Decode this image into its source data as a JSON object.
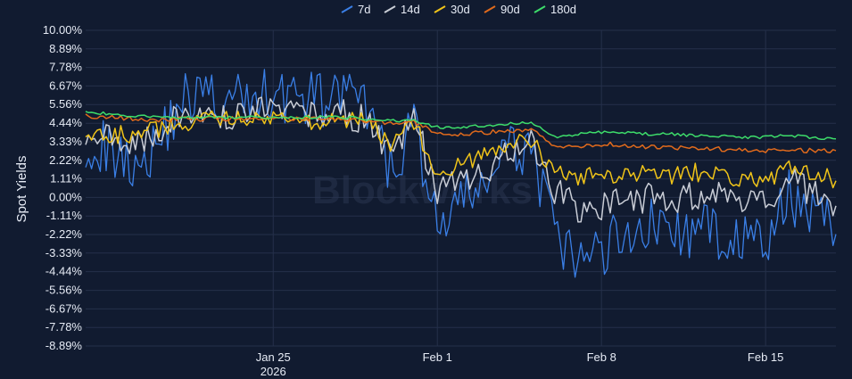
{
  "chart_data": {
    "type": "line",
    "ylabel": "Spot Yields",
    "watermark": "Blockworks",
    "legend_position": "top-center",
    "grid": true,
    "x_range": [
      "2026-01-17",
      "2026-02-18"
    ],
    "ylim": [
      -8.89,
      10.0
    ],
    "y_ticks": [
      "10.00%",
      "8.89%",
      "7.78%",
      "6.67%",
      "5.56%",
      "4.44%",
      "3.33%",
      "2.22%",
      "1.11%",
      "0.00%",
      "-1.11%",
      "-2.22%",
      "-3.33%",
      "-4.44%",
      "-5.56%",
      "-6.67%",
      "-7.78%",
      "-8.89%"
    ],
    "x_ticks": [
      {
        "date": "2026-01-25",
        "label": "Jan 25",
        "sublabel": "2026"
      },
      {
        "date": "2026-02-01",
        "label": "Feb 1",
        "sublabel": ""
      },
      {
        "date": "2026-02-08",
        "label": "Feb 8",
        "sublabel": ""
      },
      {
        "date": "2026-02-15",
        "label": "Feb 15",
        "sublabel": ""
      }
    ],
    "x": [
      "2026-01-17",
      "2026-01-18",
      "2026-01-19",
      "2026-01-20",
      "2026-01-21",
      "2026-01-22",
      "2026-01-23",
      "2026-01-24",
      "2026-01-25",
      "2026-01-26",
      "2026-01-27",
      "2026-01-28",
      "2026-01-29",
      "2026-01-30",
      "2026-01-31",
      "2026-02-01",
      "2026-02-02",
      "2026-02-03",
      "2026-02-04",
      "2026-02-05",
      "2026-02-06",
      "2026-02-07",
      "2026-02-08",
      "2026-02-09",
      "2026-02-10",
      "2026-02-11",
      "2026-02-12",
      "2026-02-13",
      "2026-02-14",
      "2026-02-15",
      "2026-02-16",
      "2026-02-17",
      "2026-02-18"
    ],
    "series": [
      {
        "name": "7d",
        "color": "#3a7fe6",
        "values": [
          3.5,
          2.8,
          2.2,
          3.0,
          5.8,
          6.2,
          5.5,
          6.0,
          6.3,
          6.0,
          5.8,
          6.2,
          5.2,
          1.5,
          4.5,
          -1.8,
          -0.5,
          1.0,
          2.5,
          3.2,
          -2.5,
          -4.0,
          -3.2,
          -2.0,
          -1.5,
          -2.0,
          -2.2,
          -2.0,
          -2.5,
          -3.0,
          0.0,
          -0.5,
          -2.2
        ]
      },
      {
        "name": "14d",
        "color": "#c9cdd6",
        "values": [
          3.8,
          3.5,
          3.5,
          3.8,
          4.9,
          5.3,
          4.9,
          5.2,
          5.2,
          5.0,
          4.9,
          5.0,
          4.6,
          2.5,
          4.6,
          0.5,
          1.0,
          1.5,
          2.5,
          3.2,
          0.5,
          -0.8,
          -0.5,
          -0.2,
          0.0,
          -0.2,
          0.2,
          0.0,
          -0.2,
          -0.5,
          1.0,
          0.3,
          -0.5
        ]
      },
      {
        "name": "30d",
        "color": "#f0c419",
        "values": [
          4.0,
          3.7,
          3.8,
          4.0,
          4.4,
          4.7,
          4.6,
          4.7,
          4.7,
          4.6,
          4.6,
          4.6,
          4.5,
          3.2,
          4.4,
          1.5,
          2.0,
          2.5,
          3.0,
          3.5,
          1.5,
          1.2,
          1.3,
          1.3,
          1.4,
          1.3,
          1.5,
          1.3,
          1.2,
          1.0,
          1.8,
          1.5,
          1.0
        ]
      },
      {
        "name": "90d",
        "color": "#e06a1c",
        "values": [
          4.9,
          4.8,
          4.7,
          4.6,
          4.7,
          4.7,
          4.7,
          4.7,
          4.7,
          4.7,
          4.7,
          4.7,
          4.6,
          4.4,
          4.5,
          3.9,
          3.8,
          3.9,
          4.0,
          4.1,
          3.0,
          3.1,
          3.2,
          3.1,
          3.0,
          3.0,
          2.9,
          2.9,
          2.8,
          2.8,
          2.8,
          2.8,
          2.8
        ]
      },
      {
        "name": "180d",
        "color": "#3ddc6a",
        "values": [
          5.1,
          5.0,
          4.9,
          4.8,
          4.8,
          4.8,
          4.8,
          4.8,
          4.8,
          4.8,
          4.8,
          4.8,
          4.7,
          4.6,
          4.6,
          4.2,
          4.2,
          4.3,
          4.4,
          4.5,
          3.6,
          3.8,
          3.9,
          3.9,
          3.8,
          3.8,
          3.7,
          3.7,
          3.6,
          3.6,
          3.7,
          3.6,
          3.5
        ]
      }
    ]
  }
}
